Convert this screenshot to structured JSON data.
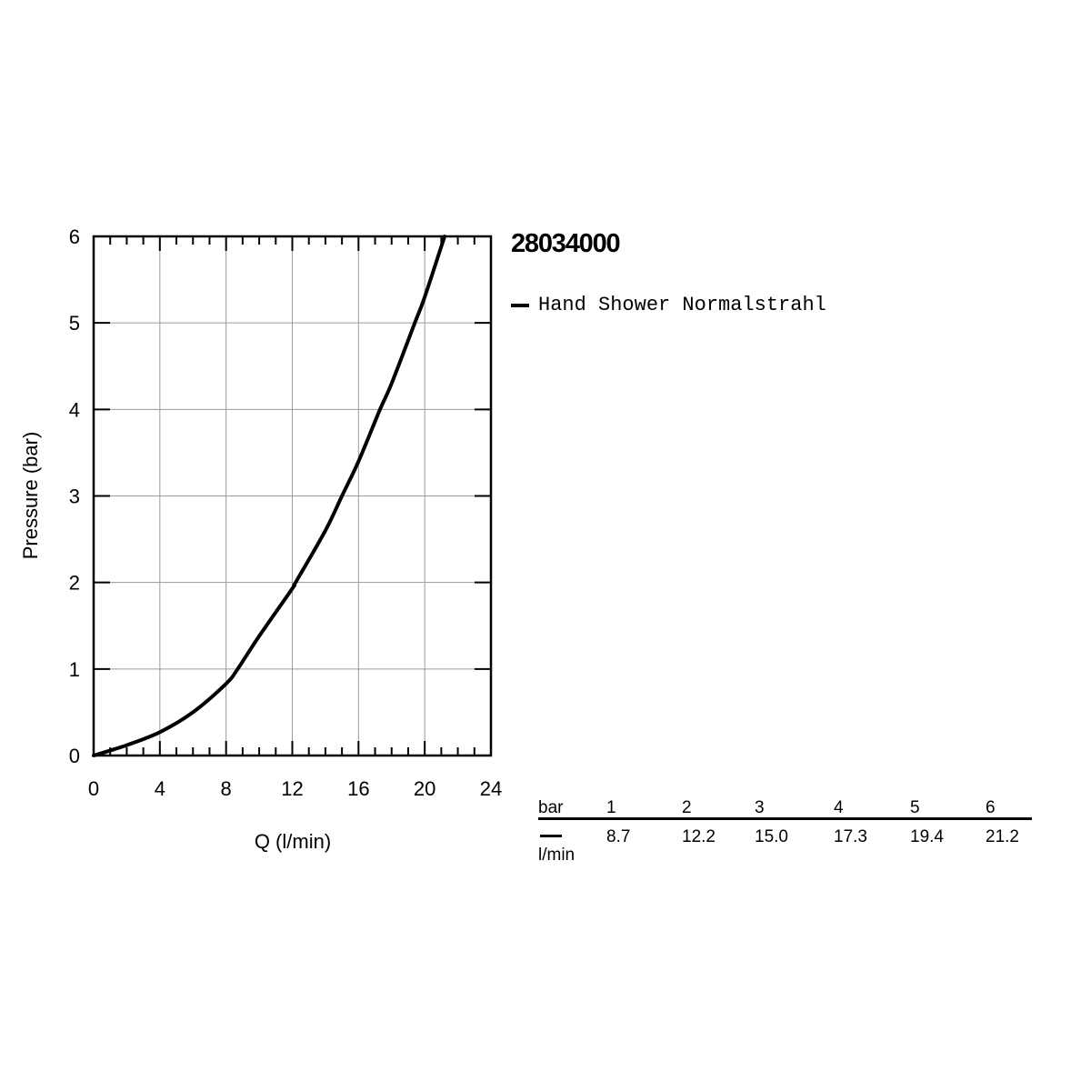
{
  "title": "28034000",
  "legend": {
    "label": "Hand Shower Normalstrahl"
  },
  "chart_data": {
    "type": "line",
    "xlabel": "Q (l/min)",
    "ylabel": "Pressure (bar)",
    "xlim": [
      0,
      24
    ],
    "ylim": [
      0,
      6
    ],
    "x_ticks": [
      "0",
      "4",
      "8",
      "12",
      "16",
      "20",
      "24"
    ],
    "y_ticks": [
      "0",
      "1",
      "2",
      "3",
      "4",
      "5",
      "6"
    ],
    "grid": true,
    "series": [
      {
        "name": "Hand Shower Normalstrahl",
        "color": "#000000",
        "x": [
          0,
          2,
          4,
          6,
          8,
          8.7,
          10,
          12,
          12.2,
          14,
          15.0,
          16,
          17.3,
          18,
          19.4,
          20,
          21.2
        ],
        "y": [
          0,
          0.12,
          0.27,
          0.5,
          0.83,
          1.0,
          1.38,
          1.93,
          2.0,
          2.6,
          3.0,
          3.4,
          4.0,
          4.3,
          5.0,
          5.3,
          6.0
        ]
      }
    ]
  },
  "table": {
    "header_label": "bar",
    "unit_label": "l/min",
    "pressures": [
      "1",
      "2",
      "3",
      "4",
      "5",
      "6"
    ],
    "flows": [
      "8.7",
      "12.2",
      "15.0",
      "17.3",
      "19.4",
      "21.2"
    ]
  }
}
